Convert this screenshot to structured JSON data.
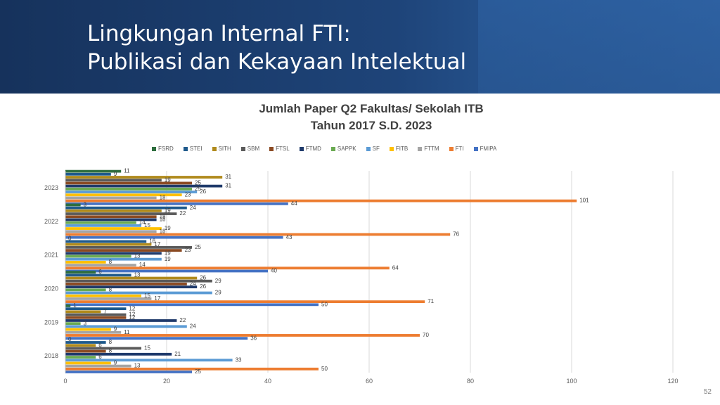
{
  "slide": {
    "title_line1": "Lingkungan Internal FTI:",
    "title_line2": "Publikasi dan Kekayaan Intelektual",
    "page_number": "52"
  },
  "colors": {
    "banner": "#1b3d6e",
    "series": [
      "#2e6e3e",
      "#1f5a8c",
      "#b08a1c",
      "#5a5a5a",
      "#8b4a22",
      "#1f3a6b",
      "#6aaa52",
      "#5b9bd5",
      "#ffc000",
      "#a5a5a5",
      "#ed7d31",
      "#4472c4"
    ]
  },
  "chart_data": {
    "type": "bar",
    "orientation": "horizontal",
    "title": "Jumlah Paper Q2 Fakultas/ Sekolah ITB",
    "subtitle": "Tahun 2017 S.D. 2023",
    "categories": [
      "2023",
      "2022",
      "2021",
      "2020",
      "2019",
      "2018"
    ],
    "series": [
      {
        "name": "FSRD",
        "values": [
          11,
          3,
          0,
          6,
          1,
          0
        ]
      },
      {
        "name": "STEI",
        "values": [
          9,
          24,
          16,
          13,
          12,
          8
        ]
      },
      {
        "name": "SITH",
        "values": [
          31,
          19,
          17,
          26,
          7,
          6
        ]
      },
      {
        "name": "SBM",
        "values": [
          19,
          22,
          25,
          29,
          12,
          15
        ]
      },
      {
        "name": "FTSL",
        "values": [
          25,
          18,
          23,
          24,
          12,
          8
        ]
      },
      {
        "name": "FTMD",
        "values": [
          31,
          18,
          19,
          26,
          22,
          21
        ]
      },
      {
        "name": "SAPPK",
        "values": [
          25,
          14,
          13,
          8,
          3,
          6
        ]
      },
      {
        "name": "SF",
        "values": [
          26,
          15,
          19,
          29,
          24,
          33
        ]
      },
      {
        "name": "FITB",
        "values": [
          23,
          19,
          8,
          15,
          9,
          9
        ]
      },
      {
        "name": "FTTM",
        "values": [
          18,
          18,
          14,
          17,
          11,
          13
        ]
      },
      {
        "name": "FTI",
        "values": [
          101,
          76,
          64,
          71,
          70,
          50
        ]
      },
      {
        "name": "FMIPA",
        "values": [
          44,
          43,
          40,
          50,
          36,
          25
        ]
      }
    ],
    "xlim": [
      0,
      120
    ],
    "xticks": [
      0,
      20,
      40,
      60,
      80,
      100,
      120
    ],
    "grid": true,
    "legend_position": "top"
  }
}
